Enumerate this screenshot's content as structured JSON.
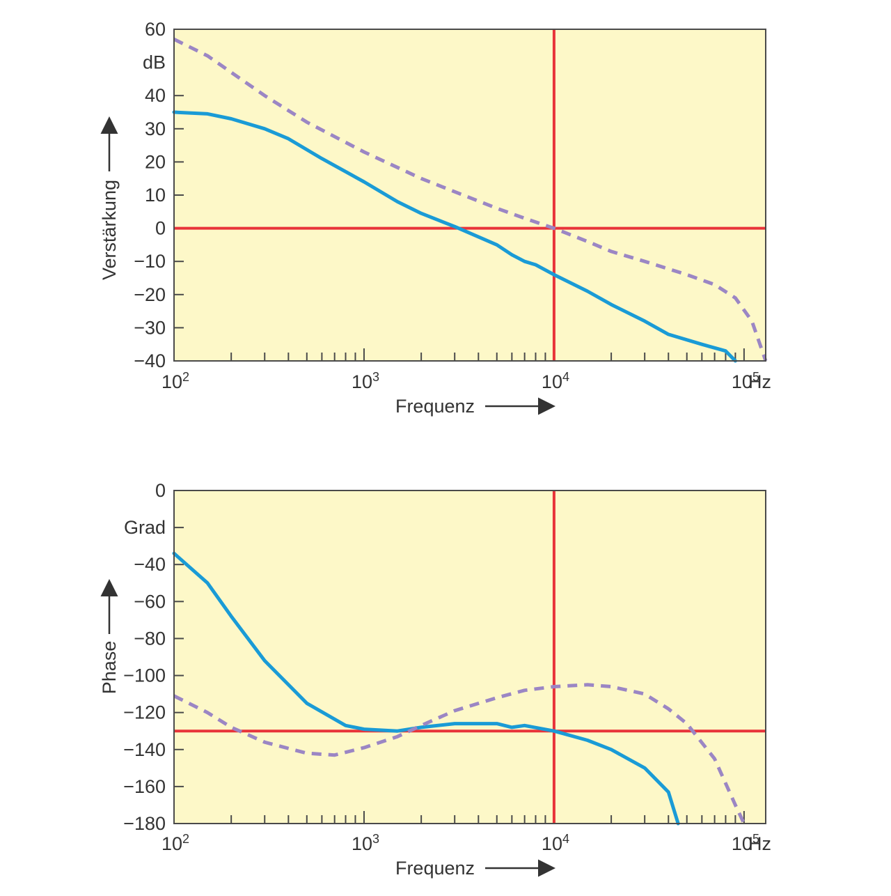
{
  "colors": {
    "plot_background": "#fdf8c8",
    "frame": "#4a4a4a",
    "reference_lines": "#e8343a",
    "solid_series": "#1a9bd6",
    "dashed_series": "#9b86c4",
    "text": "#333333"
  },
  "chart_data": [
    {
      "type": "line",
      "x_scale": "log",
      "xlim": [
        100,
        130000
      ],
      "ylim": [
        -40,
        60
      ],
      "x_tick_labels": [
        {
          "base": "10",
          "exp": "2",
          "value": 100
        },
        {
          "base": "10",
          "exp": "3",
          "value": 1000
        },
        {
          "base": "10",
          "exp": "4",
          "value": 10000
        },
        {
          "base": "10",
          "exp": "5",
          "value": 100000
        }
      ],
      "x_unit": "Hz",
      "xlabel": "Frequenz",
      "ylabel": "Verstärkung",
      "y_unit": "dB",
      "y_tick_labels": [
        {
          "value": 60,
          "label": "60"
        },
        {
          "value": 40,
          "label": "40"
        },
        {
          "value": 30,
          "label": "30"
        },
        {
          "value": 20,
          "label": "20"
        },
        {
          "value": 10,
          "label": "10"
        },
        {
          "value": 0,
          "label": "0"
        },
        {
          "value": -10,
          "label": "−10"
        },
        {
          "value": -20,
          "label": "−20"
        },
        {
          "value": -30,
          "label": "−30"
        },
        {
          "value": -40,
          "label": "−40"
        }
      ],
      "reference_lines": {
        "x": 10000,
        "y": 0
      },
      "series": [
        {
          "style": "solid",
          "points": [
            [
              100,
              35
            ],
            [
              150,
              34.5
            ],
            [
              200,
              33
            ],
            [
              300,
              30
            ],
            [
              400,
              27
            ],
            [
              600,
              21
            ],
            [
              1000,
              14
            ],
            [
              1500,
              8
            ],
            [
              2000,
              4.5
            ],
            [
              3000,
              0.5
            ],
            [
              5000,
              -5
            ],
            [
              6000,
              -8
            ],
            [
              7000,
              -10
            ],
            [
              8000,
              -11
            ],
            [
              10000,
              -14
            ],
            [
              15000,
              -19
            ],
            [
              20000,
              -23
            ],
            [
              30000,
              -28
            ],
            [
              40000,
              -32
            ],
            [
              60000,
              -35
            ],
            [
              80000,
              -37
            ],
            [
              90000,
              -40
            ]
          ]
        },
        {
          "style": "dashed",
          "points": [
            [
              100,
              57
            ],
            [
              150,
              52
            ],
            [
              200,
              47
            ],
            [
              300,
              40
            ],
            [
              500,
              32
            ],
            [
              1000,
              23
            ],
            [
              2000,
              15
            ],
            [
              3000,
              11
            ],
            [
              5000,
              6
            ],
            [
              7000,
              3
            ],
            [
              10000,
              0
            ],
            [
              15000,
              -4
            ],
            [
              20000,
              -7
            ],
            [
              30000,
              -10
            ],
            [
              50000,
              -14
            ],
            [
              70000,
              -17
            ],
            [
              90000,
              -21
            ],
            [
              110000,
              -28
            ],
            [
              130000,
              -40
            ]
          ]
        }
      ]
    },
    {
      "type": "line",
      "x_scale": "log",
      "xlim": [
        100,
        130000
      ],
      "ylim": [
        -180,
        0
      ],
      "x_tick_labels": [
        {
          "base": "10",
          "exp": "2",
          "value": 100
        },
        {
          "base": "10",
          "exp": "3",
          "value": 1000
        },
        {
          "base": "10",
          "exp": "4",
          "value": 10000
        },
        {
          "base": "10",
          "exp": "5",
          "value": 100000
        }
      ],
      "x_unit": "Hz",
      "xlabel": "Frequenz",
      "ylabel": "Phase",
      "y_unit": "Grad",
      "y_tick_labels": [
        {
          "value": 0,
          "label": "0"
        },
        {
          "value": -40,
          "label": "−40"
        },
        {
          "value": -60,
          "label": "−60"
        },
        {
          "value": -80,
          "label": "−80"
        },
        {
          "value": -100,
          "label": "−100"
        },
        {
          "value": -120,
          "label": "−120"
        },
        {
          "value": -140,
          "label": "−140"
        },
        {
          "value": -160,
          "label": "−160"
        },
        {
          "value": -180,
          "label": "−180"
        }
      ],
      "extra_y_ticks": [
        -20
      ],
      "reference_lines": {
        "x": 10000,
        "y": -130
      },
      "series": [
        {
          "style": "solid",
          "points": [
            [
              100,
              -34
            ],
            [
              150,
              -50
            ],
            [
              200,
              -68
            ],
            [
              300,
              -92
            ],
            [
              500,
              -115
            ],
            [
              800,
              -127
            ],
            [
              1000,
              -129
            ],
            [
              1500,
              -130
            ],
            [
              2000,
              -128
            ],
            [
              3000,
              -126
            ],
            [
              5000,
              -126
            ],
            [
              6000,
              -128
            ],
            [
              7000,
              -127
            ],
            [
              10000,
              -130
            ],
            [
              15000,
              -135
            ],
            [
              20000,
              -140
            ],
            [
              30000,
              -150
            ],
            [
              40000,
              -163
            ],
            [
              45000,
              -180
            ]
          ]
        },
        {
          "style": "dashed",
          "points": [
            [
              100,
              -111
            ],
            [
              150,
              -120
            ],
            [
              200,
              -128
            ],
            [
              300,
              -136
            ],
            [
              500,
              -142
            ],
            [
              700,
              -143
            ],
            [
              1000,
              -139
            ],
            [
              1500,
              -133
            ],
            [
              2000,
              -127
            ],
            [
              3000,
              -119
            ],
            [
              5000,
              -112
            ],
            [
              7000,
              -108
            ],
            [
              10000,
              -106
            ],
            [
              15000,
              -105
            ],
            [
              20000,
              -106
            ],
            [
              30000,
              -110
            ],
            [
              40000,
              -118
            ],
            [
              50000,
              -126
            ],
            [
              70000,
              -145
            ],
            [
              90000,
              -170
            ],
            [
              100000,
              -180
            ]
          ]
        }
      ]
    }
  ]
}
